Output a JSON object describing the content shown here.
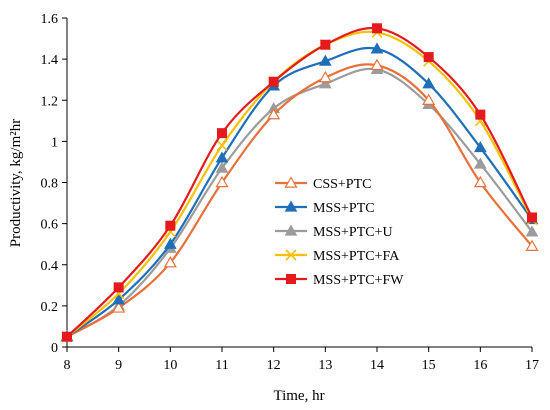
{
  "chart_data": {
    "type": "line",
    "title": "",
    "xlabel": "Time, hr",
    "ylabel": "Productivity, kg/m²hr",
    "xlim": [
      8,
      17
    ],
    "ylim": [
      0,
      1.6
    ],
    "x_ticks": [
      "8",
      "9",
      "10",
      "11",
      "12",
      "13",
      "14",
      "15",
      "16",
      "17"
    ],
    "y_ticks": [
      "0",
      "0.2",
      "0.4",
      "0.6",
      "0.8",
      "1",
      "1.2",
      "1.4",
      "1.6"
    ],
    "grid": false,
    "legend_position": "center-right",
    "x": [
      8,
      9,
      10,
      11,
      12,
      13,
      14,
      15,
      16,
      17
    ],
    "series": [
      {
        "name": "CSS+PTC",
        "color": "#e8703a",
        "marker": "triangle-open",
        "values": [
          0.05,
          0.19,
          0.41,
          0.8,
          1.13,
          1.31,
          1.37,
          1.2,
          0.8,
          0.49
        ]
      },
      {
        "name": "MSS+PTC",
        "color": "#1f6fb8",
        "marker": "triangle",
        "values": [
          0.05,
          0.23,
          0.5,
          0.92,
          1.27,
          1.39,
          1.45,
          1.28,
          0.97,
          0.62
        ]
      },
      {
        "name": "MSS+PTC+U",
        "color": "#9c9c9c",
        "marker": "triangle",
        "values": [
          0.05,
          0.2,
          0.48,
          0.87,
          1.16,
          1.28,
          1.35,
          1.18,
          0.89,
          0.56
        ]
      },
      {
        "name": "MSS+PTC+FA",
        "color": "#f7c000",
        "marker": "x",
        "values": [
          0.05,
          0.26,
          0.56,
          0.98,
          1.29,
          1.47,
          1.53,
          1.39,
          1.1,
          0.62
        ]
      },
      {
        "name": "MSS+PTC+FW",
        "color": "#e41a1c",
        "marker": "square",
        "values": [
          0.05,
          0.29,
          0.59,
          1.04,
          1.29,
          1.47,
          1.55,
          1.41,
          1.13,
          0.63
        ]
      }
    ]
  }
}
